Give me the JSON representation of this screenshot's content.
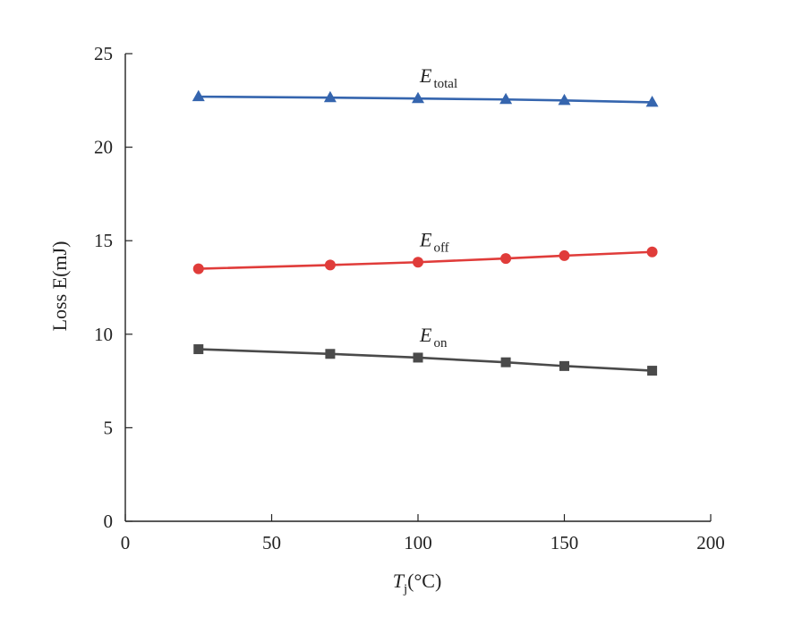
{
  "chart_data": {
    "type": "line",
    "xlabel": {
      "main": "T",
      "sub": "j",
      "rest": "(°C)"
    },
    "ylabel": "Loss E(mJ)",
    "xlim": [
      0,
      200
    ],
    "ylim": [
      0,
      25
    ],
    "xticks": [
      0,
      50,
      100,
      150,
      200
    ],
    "yticks": [
      0,
      5,
      10,
      15,
      20,
      25
    ],
    "grid": false,
    "x": [
      25,
      70,
      100,
      130,
      150,
      180
    ],
    "series": [
      {
        "key": "total",
        "label_main": "E",
        "label_sub": "total",
        "marker": "triangle",
        "color": "#3565AE",
        "values": [
          22.7,
          22.65,
          22.6,
          22.55,
          22.5,
          22.4
        ]
      },
      {
        "key": "off",
        "label_main": "E",
        "label_sub": "off",
        "marker": "circle",
        "color": "#E03C3A",
        "values": [
          13.5,
          13.7,
          13.85,
          14.05,
          14.2,
          14.4
        ]
      },
      {
        "key": "on",
        "label_main": "E",
        "label_sub": "on",
        "marker": "square",
        "color": "#4A4A4A",
        "values": [
          9.2,
          8.95,
          8.75,
          8.5,
          8.3,
          8.05
        ]
      }
    ]
  }
}
